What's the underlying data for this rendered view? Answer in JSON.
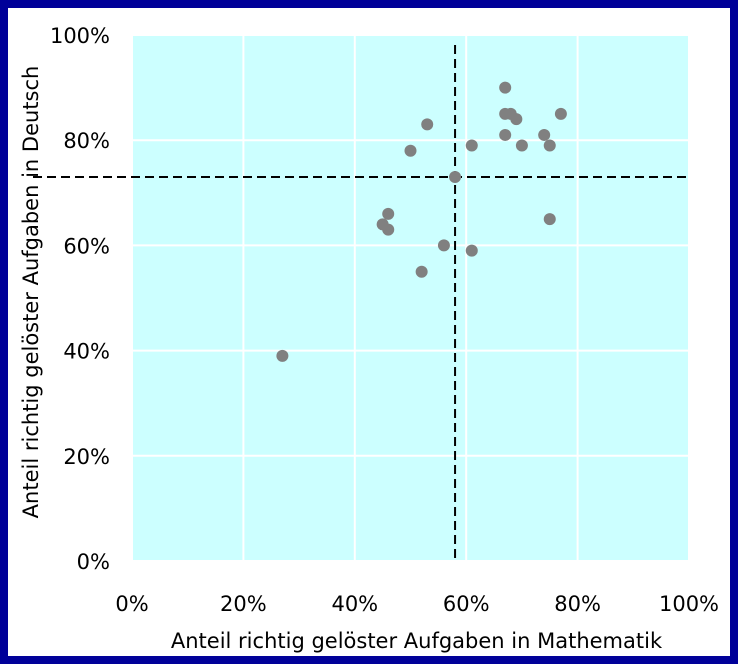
{
  "chart_data": {
    "type": "scatter",
    "xlabel": "Anteil richtig gelöster Aufgaben in Mathematik",
    "ylabel": "Anteil richtig gelöster Aufgaben in Deutsch",
    "xlim": [
      0,
      100
    ],
    "ylim": [
      0,
      100
    ],
    "x_ticks": [
      "0%",
      "20%",
      "40%",
      "60%",
      "80%",
      "100%"
    ],
    "y_ticks": [
      "0%",
      "20%",
      "40%",
      "60%",
      "80%",
      "100%"
    ],
    "grid": true,
    "reference_lines": {
      "x_mean": 58,
      "y_mean": 73
    },
    "colors": {
      "frame": "#000099",
      "plot_background": "#ccffff",
      "points": "#808080",
      "grid": "#ffffff",
      "reference_line": "#000000"
    },
    "points": [
      {
        "x": 27,
        "y": 39
      },
      {
        "x": 45,
        "y": 64
      },
      {
        "x": 46,
        "y": 66
      },
      {
        "x": 46,
        "y": 63
      },
      {
        "x": 50,
        "y": 78
      },
      {
        "x": 52,
        "y": 55
      },
      {
        "x": 53,
        "y": 83
      },
      {
        "x": 56,
        "y": 60
      },
      {
        "x": 58,
        "y": 73
      },
      {
        "x": 61,
        "y": 79
      },
      {
        "x": 61,
        "y": 59
      },
      {
        "x": 67,
        "y": 90
      },
      {
        "x": 67,
        "y": 85
      },
      {
        "x": 67,
        "y": 81
      },
      {
        "x": 68,
        "y": 85
      },
      {
        "x": 69,
        "y": 84
      },
      {
        "x": 70,
        "y": 79
      },
      {
        "x": 74,
        "y": 81
      },
      {
        "x": 75,
        "y": 79
      },
      {
        "x": 75,
        "y": 65
      },
      {
        "x": 77,
        "y": 85
      }
    ]
  }
}
